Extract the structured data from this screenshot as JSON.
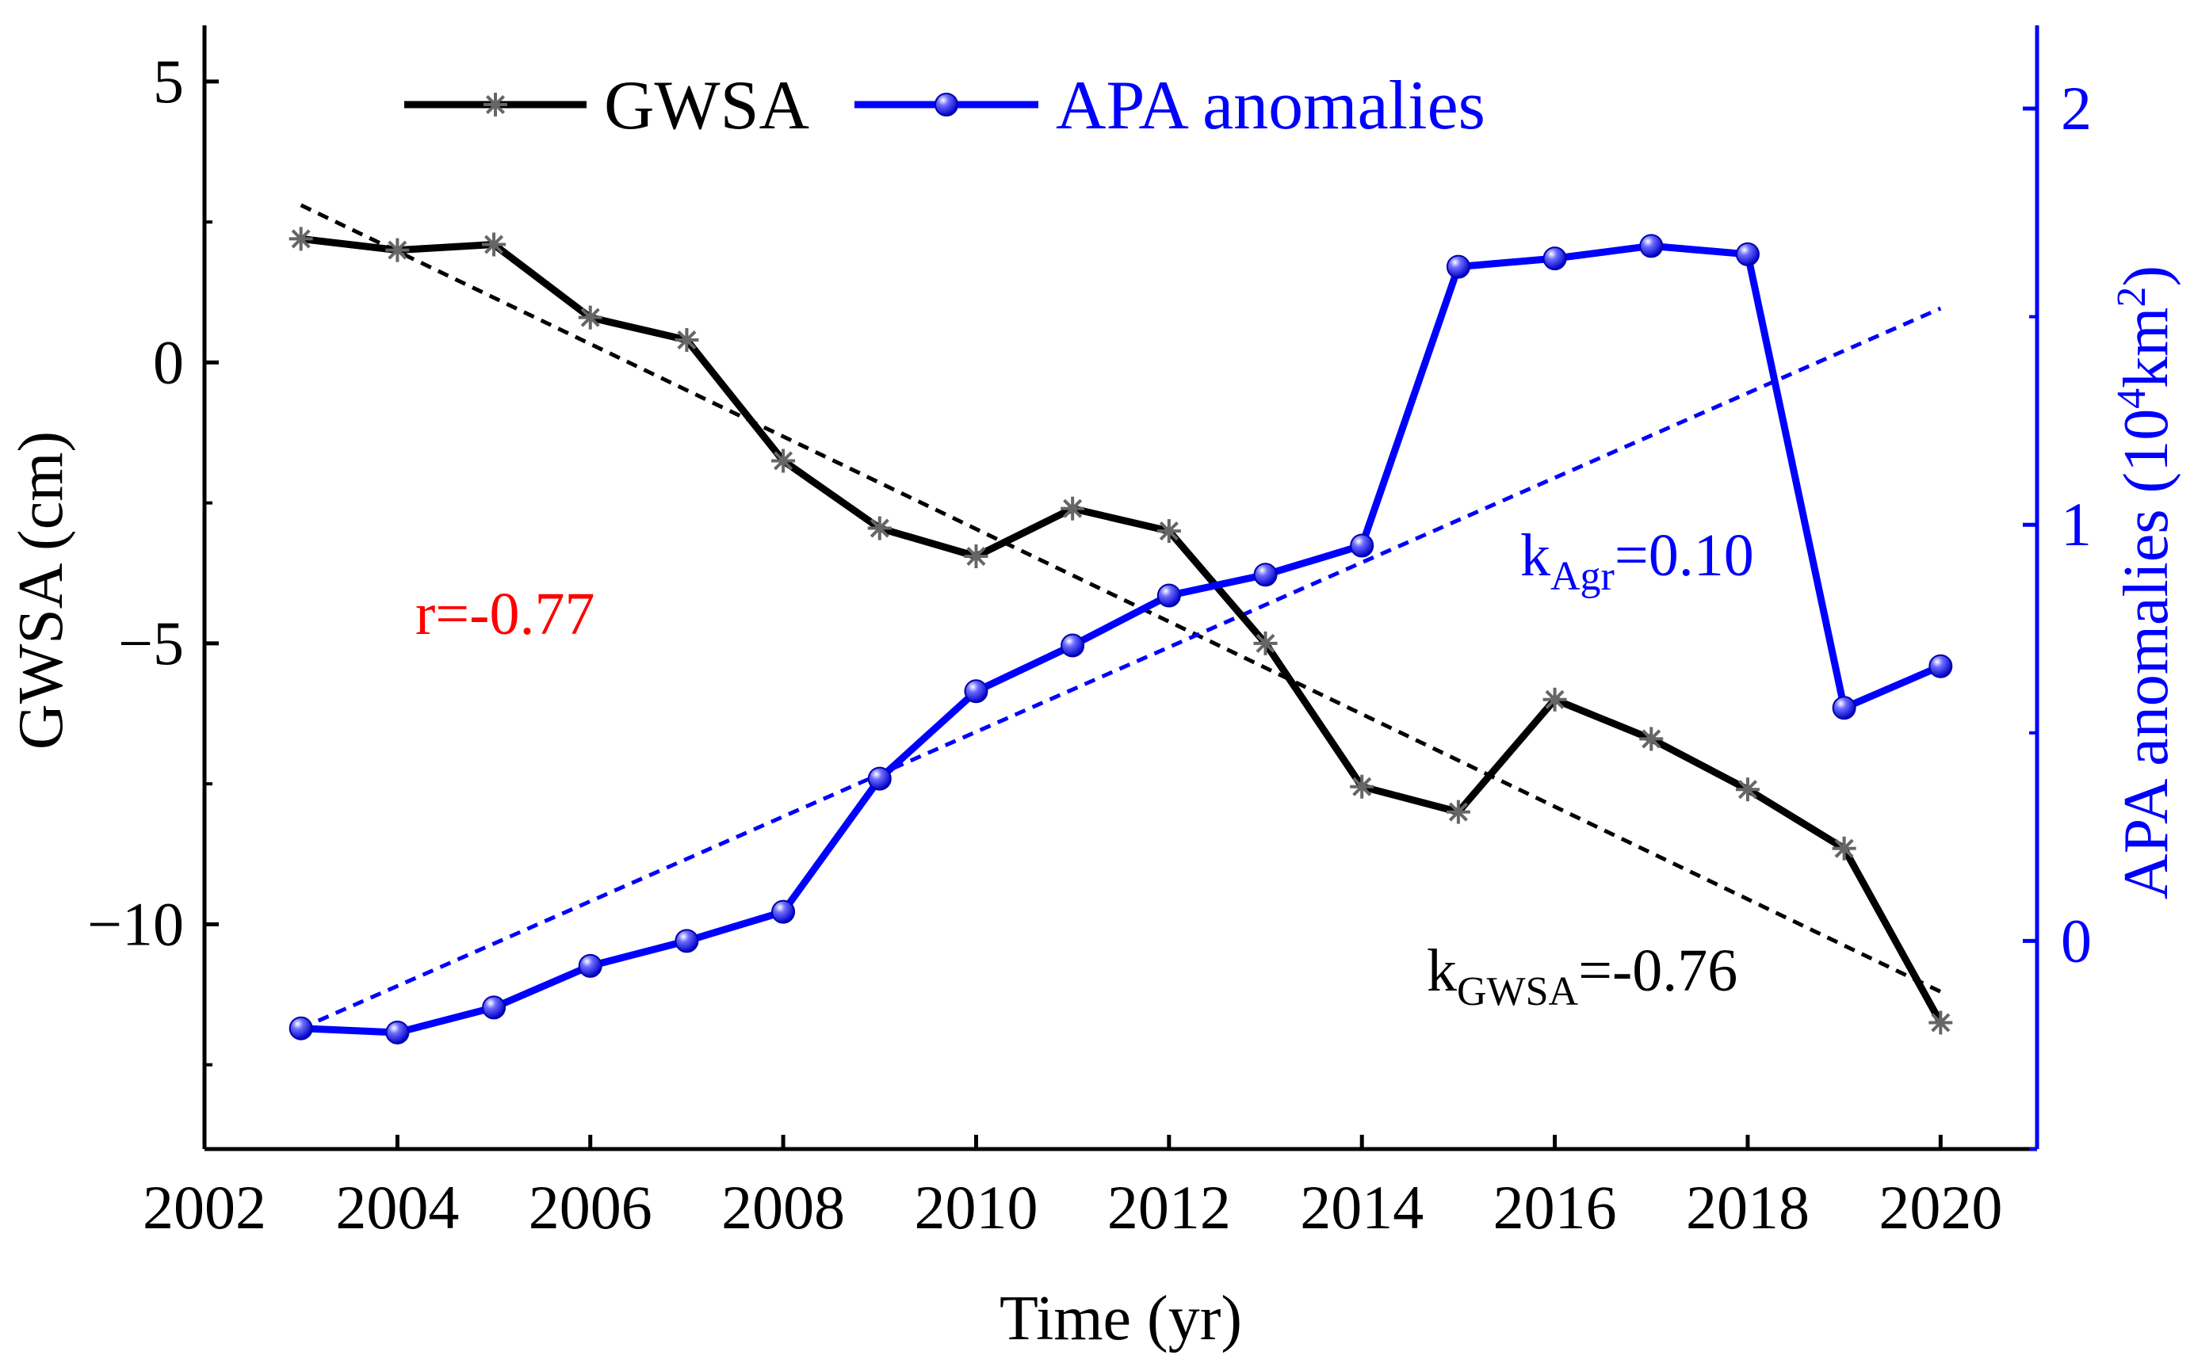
{
  "chart_data": {
    "type": "line",
    "x": [
      2003,
      2004,
      2005,
      2006,
      2007,
      2008,
      2009,
      2010,
      2011,
      2012,
      2013,
      2014,
      2015,
      2016,
      2017,
      2018,
      2019,
      2020
    ],
    "xlabel": "Time (yr)",
    "ylabel": "GWSA (cm)",
    "ylabel_right": {
      "main": "APA anomalies (10",
      "sup": "4",
      "unit": "km",
      "sup2": "2",
      "end": ")"
    },
    "xlim": [
      2002,
      2021
    ],
    "ylim": [
      -14,
      6
    ],
    "ylim_right": [
      -0.5,
      2.2
    ],
    "x_ticks": [
      2002,
      2004,
      2006,
      2008,
      2010,
      2012,
      2014,
      2016,
      2018,
      2020
    ],
    "x_tick_labels": [
      "2002",
      "2004",
      "2006",
      "2008",
      "2010",
      "2012",
      "2014",
      "2016",
      "2018",
      "2020"
    ],
    "y_ticks": [
      5,
      0,
      -5,
      -10
    ],
    "y_tick_labels": [
      "5",
      "0",
      "−05",
      "−10"
    ],
    "y_tick_labels_display": [
      "5",
      "0",
      "−5",
      "−10"
    ],
    "y_ticks_right": [
      2,
      1,
      0
    ],
    "y_tick_labels_right": [
      "2",
      "1",
      "0"
    ],
    "series": [
      {
        "name": "GWSA",
        "axis": "left",
        "color": "#000000",
        "marker_color": "#666666",
        "marker": "asterisk",
        "values": [
          2.2,
          2.0,
          2.1,
          0.8,
          0.4,
          -1.75,
          -2.95,
          -3.45,
          -2.6,
          -3.0,
          -5.0,
          -7.55,
          -8.0,
          -6.0,
          -6.7,
          -7.6,
          -8.65,
          -11.75
        ]
      },
      {
        "name": "APA anomalies",
        "axis": "right",
        "color": "#0000ff",
        "marker": "sphere",
        "values": [
          -0.21,
          -0.22,
          -0.16,
          -0.06,
          0.0,
          0.07,
          0.39,
          0.6,
          0.71,
          0.83,
          0.88,
          0.95,
          1.62,
          1.64,
          1.67,
          1.65,
          0.56,
          0.66
        ]
      }
    ],
    "trendlines": [
      {
        "axis": "left",
        "color": "#000000",
        "x": [
          2003,
          2020
        ],
        "y": [
          2.8,
          -11.2
        ]
      },
      {
        "axis": "right",
        "color": "#0000ff",
        "x": [
          2003,
          2020
        ],
        "y": [
          -0.21,
          1.52
        ]
      }
    ],
    "annotations": {
      "r": {
        "text": "r=-0.77",
        "color": "#ff0000"
      },
      "k_agr": {
        "k": "k",
        "sub": "Agr",
        "rest": "=0.10",
        "color": "#0000ff"
      },
      "k_gwsa": {
        "k": "k",
        "sub": "GWSA",
        "rest": "=-0.76",
        "color": "#000000"
      }
    },
    "legend_position": "top-left",
    "grid": false,
    "colors": {
      "left_axis": "#000000",
      "right_axis": "#0000ff"
    }
  }
}
